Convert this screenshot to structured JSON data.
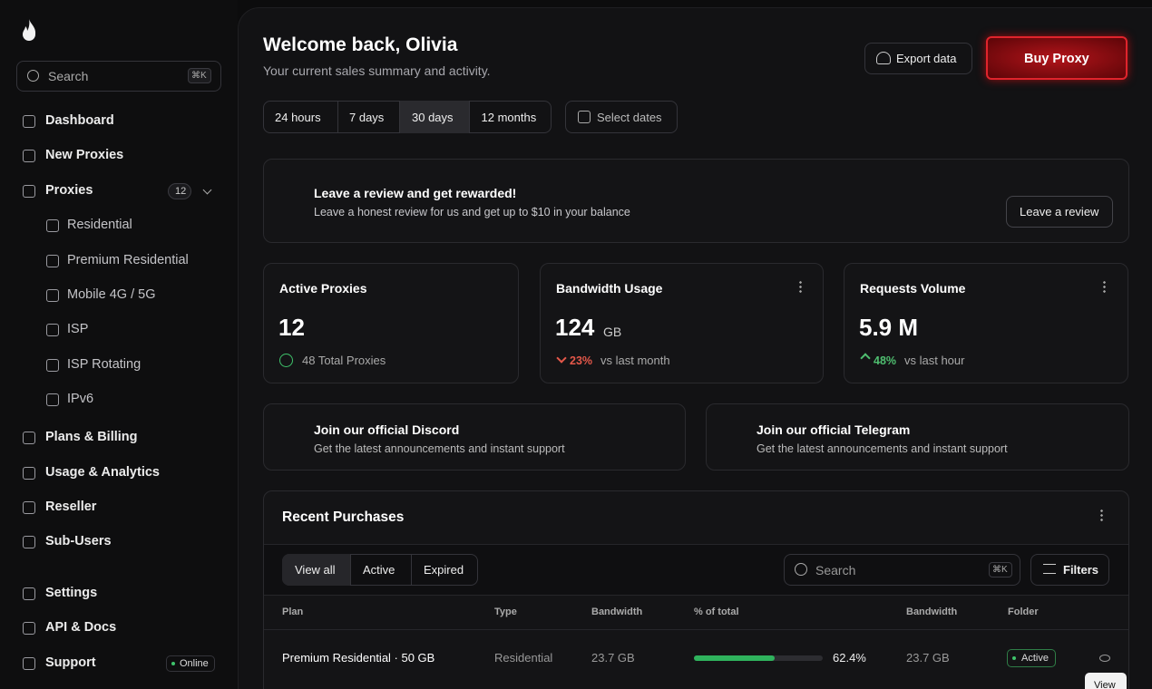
{
  "sidebar": {
    "search_placeholder": "Search",
    "search_shortcut": "⌘K",
    "nav": [
      {
        "label": "Dashboard"
      },
      {
        "label": "New Proxies"
      },
      {
        "label": "Proxies",
        "badge": "12"
      },
      {
        "label": "Residential",
        "sub": true
      },
      {
        "label": "Premium Residential",
        "sub": true
      },
      {
        "label": "Mobile 4G / 5G",
        "sub": true
      },
      {
        "label": "ISP",
        "sub": true
      },
      {
        "label": "ISP Rotating",
        "sub": true
      },
      {
        "label": "IPv6",
        "sub": true
      },
      {
        "label": "Plans & Billing"
      },
      {
        "label": "Usage & Analytics"
      },
      {
        "label": "Reseller"
      },
      {
        "label": "Sub-Users"
      },
      {
        "label": "Settings"
      },
      {
        "label": "API & Docs"
      },
      {
        "label": "Support",
        "badge": "Online"
      }
    ]
  },
  "header": {
    "title": "Welcome back, Olivia",
    "subtitle": "Your current sales summary and activity.",
    "export_button": "Export data",
    "buy_button": "Buy Proxy"
  },
  "range": {
    "options": [
      "24 hours",
      "7 days",
      "30 days",
      "12 months"
    ],
    "active": 2,
    "select_dates": "Select dates"
  },
  "review": {
    "title": "Leave a review and get rewarded!",
    "text": "Leave a honest review for us and get up to $10 in your balance",
    "button": "Leave a review"
  },
  "stats": [
    {
      "title": "Active Proxies",
      "value": "12",
      "sub": "48 Total Proxies"
    },
    {
      "title": "Bandwidth Usage",
      "value": "124",
      "unit": "GB",
      "change": "23%",
      "note": "vs last month",
      "direction": "down"
    },
    {
      "title": "Requests Volume",
      "value": "5.9 M",
      "change": "48%",
      "note": "vs last hour",
      "direction": "up"
    }
  ],
  "community": [
    {
      "title": "Join our official Discord",
      "text": "Get the latest announcements and instant support"
    },
    {
      "title": "Join our official Telegram",
      "text": "Get the latest announcements and instant support"
    }
  ],
  "purchases": {
    "title": "Recent Purchases",
    "filters": [
      "View all",
      "Active",
      "Expired"
    ],
    "active_filter": 0,
    "search_placeholder": "Search",
    "search_shortcut": "⌘K",
    "filters_button": "Filters",
    "columns": [
      "Plan",
      "Type",
      "Bandwidth",
      "% of total",
      "Bandwidth",
      "Folder"
    ],
    "rows": [
      {
        "plan": "Premium Residential · 50 GB",
        "type": "Residential",
        "bandwidth": "23.7 GB",
        "share": {
          "value": 62.4,
          "label": "62.4%"
        },
        "bandwidth_2": "23.7 GB",
        "folder": "Active"
      }
    ],
    "tooltip": "View"
  }
}
